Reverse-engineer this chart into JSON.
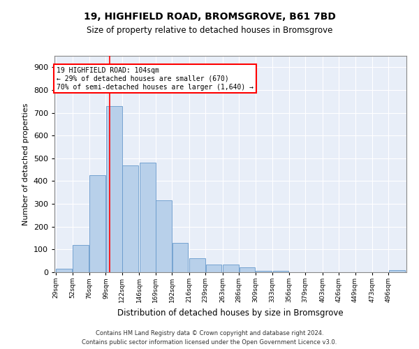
{
  "title_line1": "19, HIGHFIELD ROAD, BROMSGROVE, B61 7BD",
  "title_line2": "Size of property relative to detached houses in Bromsgrove",
  "xlabel": "Distribution of detached houses by size in Bromsgrove",
  "ylabel": "Number of detached properties",
  "bar_color": "#b8d0ea",
  "bar_edge_color": "#6699cc",
  "annotation_line1": "19 HIGHFIELD ROAD: 104sqm",
  "annotation_line2": "← 29% of detached houses are smaller (670)",
  "annotation_line3": "70% of semi-detached houses are larger (1,640) →",
  "property_line_x": 104,
  "categories": [
    "29sqm",
    "52sqm",
    "76sqm",
    "99sqm",
    "122sqm",
    "146sqm",
    "169sqm",
    "192sqm",
    "216sqm",
    "239sqm",
    "263sqm",
    "286sqm",
    "309sqm",
    "333sqm",
    "356sqm",
    "379sqm",
    "403sqm",
    "426sqm",
    "449sqm",
    "473sqm",
    "496sqm"
  ],
  "bin_edges": [
    29,
    52,
    76,
    99,
    122,
    146,
    169,
    192,
    216,
    239,
    263,
    286,
    309,
    333,
    356,
    379,
    403,
    426,
    449,
    473,
    496
  ],
  "values": [
    15,
    120,
    425,
    730,
    470,
    480,
    315,
    130,
    60,
    35,
    35,
    20,
    5,
    5,
    0,
    0,
    0,
    0,
    0,
    0,
    8
  ],
  "ylim": [
    0,
    950
  ],
  "yticks": [
    0,
    100,
    200,
    300,
    400,
    500,
    600,
    700,
    800,
    900
  ],
  "background_color": "#e8eef8",
  "footer_line1": "Contains HM Land Registry data © Crown copyright and database right 2024.",
  "footer_line2": "Contains public sector information licensed under the Open Government Licence v3.0."
}
